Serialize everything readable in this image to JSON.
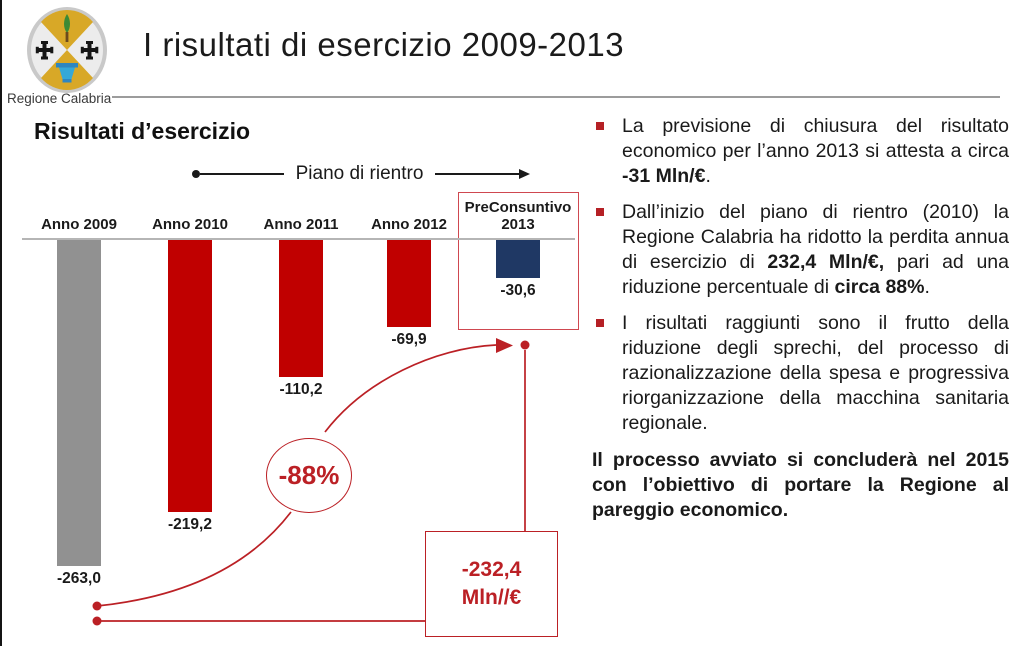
{
  "header": {
    "logo_caption": "Regione Calabria",
    "title": "I risultati di esercizio 2009-2013"
  },
  "chart": {
    "title": "Risultati d’esercizio",
    "phase_label": "Piano di rientro",
    "chart_data": {
      "type": "bar",
      "categories": [
        "Anno 2009",
        "Anno 2010",
        "Anno 2011",
        "Anno 2012",
        "PreConsuntivo 2013"
      ],
      "values": [
        -263.0,
        -219.2,
        -110.2,
        -69.9,
        -30.6
      ],
      "value_labels": [
        "-263,0",
        "-219,2",
        "-110,2",
        "-69,9",
        "-30,6"
      ],
      "bar_colors": [
        "#919191",
        "#c00000",
        "#c00000",
        "#c00000",
        "#1f3864"
      ],
      "title": "Risultati d’esercizio",
      "xlabel": "",
      "ylabel": "Mln/€",
      "ylim": [
        -280,
        0
      ],
      "grid": false,
      "annotations": {
        "percent_reduction": "-88%",
        "delta_line1": "-232,4",
        "delta_line2": "Mln//€",
        "phase_arrow_label": "Piano di rientro",
        "highlighted_category": "PreConsuntivo 2013"
      }
    }
  },
  "right_panel": {
    "bullets": [
      {
        "segments": [
          {
            "t": "La previsione di chiusura del risultato economico per l’anno 2013 si attesta a circa "
          },
          {
            "t": "-31 Mln/€",
            "bold": true
          },
          {
            "t": "."
          }
        ]
      },
      {
        "segments": [
          {
            "t": "Dall’inizio del piano di rientro (2010) la Regione Calabria ha ridotto la perdita annua di esercizio di "
          },
          {
            "t": "232,4 Mln/€,",
            "bold": true
          },
          {
            "t": " pari ad una riduzione percentuale di "
          },
          {
            "t": "circa 88%",
            "bold": true
          },
          {
            "t": "."
          }
        ]
      },
      {
        "segments": [
          {
            "t": "I risultati raggiunti sono il frutto della riduzione degli sprechi, del processo di razionalizzazione della spesa e progressiva riorganizzazione della macchina sanitaria regionale."
          }
        ]
      }
    ],
    "closing": "Il processo avviato si concluderà nel 2015 con l’obiettivo di portare la Regione al pareggio economico."
  },
  "colors": {
    "bar_red": "#c00000",
    "bar_gray": "#919191",
    "bar_navy": "#1f3864",
    "annotation_red": "#bb2025"
  }
}
